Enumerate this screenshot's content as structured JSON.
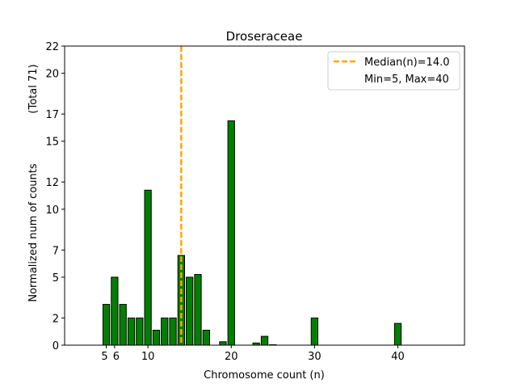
{
  "chart_data": {
    "type": "bar",
    "title": "Droseraceae",
    "xlabel": "Chromosome count (n)",
    "ylabel": "Normalized num of counts",
    "ylabel2": "(Total 71)",
    "x": [
      5,
      6,
      7,
      8,
      9,
      10,
      11,
      12,
      13,
      14,
      15,
      16,
      17,
      19,
      20,
      23,
      24,
      25,
      30,
      40
    ],
    "values": [
      3.0,
      5.0,
      3.0,
      2.0,
      2.0,
      11.4,
      1.1,
      2.0,
      2.0,
      6.6,
      5.0,
      5.2,
      1.1,
      0.25,
      16.5,
      0.16,
      0.65,
      0.03,
      2.0,
      1.6
    ],
    "xlim": [
      0,
      48
    ],
    "ylim": [
      0,
      22
    ],
    "xticks": [
      5,
      6,
      10,
      20,
      30,
      40
    ],
    "yticks": [
      0,
      2,
      5,
      7,
      10,
      12,
      15,
      17,
      20,
      22
    ],
    "median": 14.0,
    "legend": {
      "placement": "top-right",
      "entries": [
        "Median(n)=14.0",
        "Min=5, Max=40"
      ]
    },
    "colors": {
      "bar": "#008000",
      "edge": "#000000",
      "median": "#ffa500"
    }
  }
}
